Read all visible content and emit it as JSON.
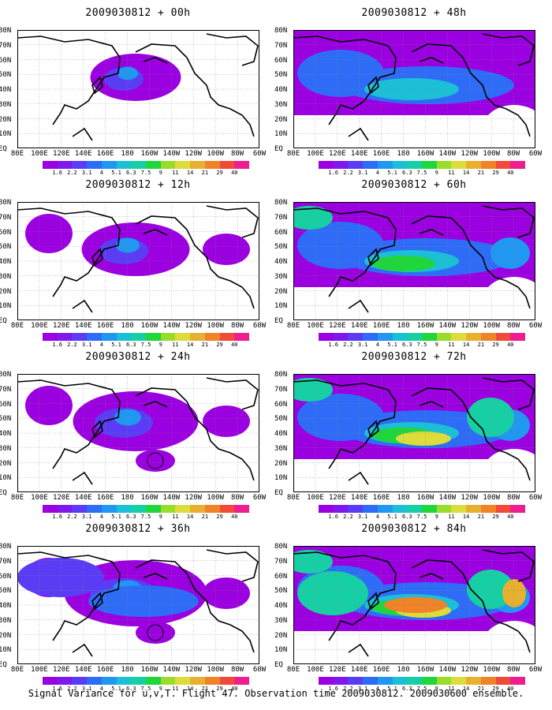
{
  "panels": [
    {
      "id": "p00",
      "title": "2009030812 + 00h",
      "col": 0,
      "row": 0,
      "intensity": 0.25
    },
    {
      "id": "p12",
      "title": "2009030812 + 12h",
      "col": 0,
      "row": 1,
      "intensity": 0.35
    },
    {
      "id": "p24",
      "title": "2009030812 + 24h",
      "col": 0,
      "row": 2,
      "intensity": 0.45
    },
    {
      "id": "p36",
      "title": "2009030812 + 36h",
      "col": 0,
      "row": 3,
      "intensity": 0.55
    },
    {
      "id": "p48",
      "title": "2009030812 + 48h",
      "col": 1,
      "row": 0,
      "intensity": 0.7
    },
    {
      "id": "p60",
      "title": "2009030812 + 60h",
      "col": 1,
      "row": 1,
      "intensity": 0.8
    },
    {
      "id": "p72",
      "title": "2009030812 + 72h",
      "col": 1,
      "row": 2,
      "intensity": 0.9
    },
    {
      "id": "p84",
      "title": "2009030812 + 84h",
      "col": 1,
      "row": 3,
      "intensity": 1.0
    }
  ],
  "lat_labels": [
    "80N",
    "70N",
    "60N",
    "50N",
    "40N",
    "30N",
    "20N",
    "10N",
    "EQ"
  ],
  "lon_labels": [
    "80E",
    "100E",
    "120E",
    "140E",
    "160E",
    "180",
    "160W",
    "140W",
    "120W",
    "100W",
    "80W",
    "60W"
  ],
  "colorbar": {
    "labels": [
      "1.6",
      "2.2",
      "3.1",
      "4",
      "5.1",
      "6.3",
      "7.5",
      "9",
      "11",
      "14",
      "21",
      "29",
      "40"
    ],
    "colors": [
      "#9b00e0",
      "#7f18ef",
      "#5a3cf5",
      "#2e6cf7",
      "#2097f0",
      "#1bbfd6",
      "#17cfa4",
      "#1fd63c",
      "#9adc2a",
      "#dcdc3a",
      "#e8b030",
      "#f08228",
      "#f04a3a",
      "#ee1e8e"
    ]
  },
  "footer": "Signal Variance for u,v,T. Flight 47. Observation time 2009030812. 2009030600 ensemble."
}
